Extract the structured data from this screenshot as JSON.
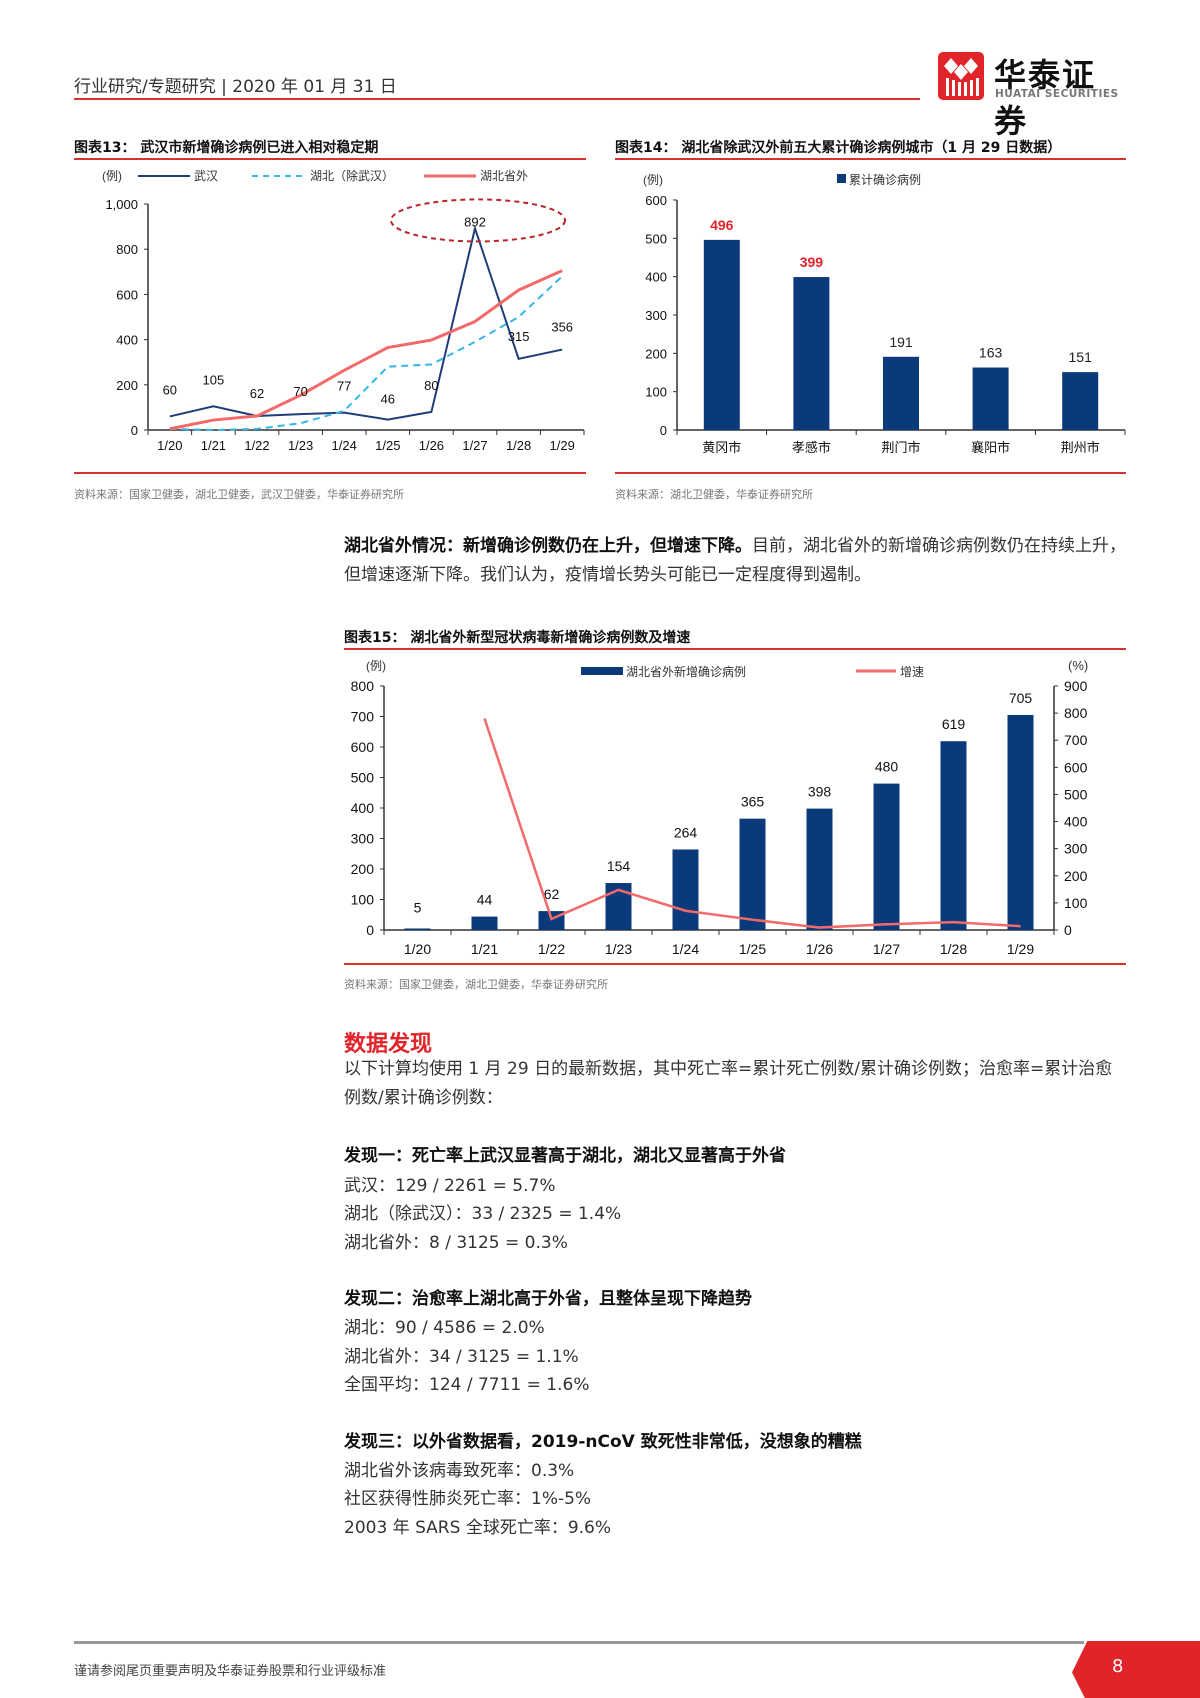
{
  "header": {
    "breadcrumb": "行业研究/专题研究 | 2020 年 01 月 31 日",
    "logo_cn": "华泰证券",
    "logo_en": "HUATAI SECURITIES"
  },
  "figure13": {
    "title": "图表13：  武汉市新增确诊病例已进入相对稳定期",
    "unit": "(例)",
    "source": "资料来源：国家卫健委，湖北卫健委，武汉卫健委，华泰证券研究所"
  },
  "figure14": {
    "title": "图表14：  湖北省除武汉外前五大累计确诊病例城市（1 月 29 日数据）",
    "unit": "(例)",
    "source": "资料来源：湖北卫健委，华泰证券研究所"
  },
  "figure15": {
    "title": "图表15：  湖北省外新型冠状病毒新增确诊病例数及增速",
    "unit_left": "(例)",
    "unit_right": "(%)",
    "source": "资料来源：国家卫健委，湖北卫健委，华泰证券研究所"
  },
  "body": {
    "para_bold": "湖北省外情况：新增确诊例数仍在上升，但增速下降。",
    "para_rest": "目前，湖北省外的新增确诊病例数仍在持续上升，但增速逐渐下降。我们认为，疫情增长势头可能已一定程度得到遏制。",
    "section_title": "数据发现",
    "intro": "以下计算均使用 1 月 29 日的最新数据，其中死亡率=累计死亡例数/累计确诊例数；治愈率=累计治愈例数/累计确诊例数：",
    "findings": [
      {
        "title": "发现一：死亡率上武汉显著高于湖北，湖北又显著高于外省",
        "items": [
          "武汉：129 / 2261 = 5.7%",
          "湖北（除武汉）：33 / 2325 = 1.4%",
          "湖北省外：8 / 3125 = 0.3%"
        ]
      },
      {
        "title": "发现二：治愈率上湖北高于外省，且整体呈现下降趋势",
        "items": [
          "湖北：90 / 4586 = 2.0%",
          "湖北省外：34 / 3125 = 1.1%",
          "全国平均：124 / 7711 = 1.6%"
        ]
      },
      {
        "title": "发现三：以外省数据看，2019-nCoV 致死性非常低，没想象的糟糕",
        "items": [
          "湖北省外该病毒致死率：0.3%",
          "社区获得性肺炎死亡率：1%-5%",
          "2003 年 SARS 全球死亡率：9.6%"
        ]
      }
    ]
  },
  "footer": {
    "disclaimer": "谨请参阅尾页重要声明及华泰证券股票和行业评级标准",
    "page_number": "8"
  },
  "colors": {
    "navy": "#0b3a7a",
    "red": "#f26a6a",
    "cyan": "#36b6e6",
    "brand_red": "#e1242a"
  },
  "chart_data": [
    {
      "type": "line",
      "title": "武汉市新增确诊病例已进入相对稳定期",
      "ylabel": "(例)",
      "ylim": [
        0,
        1000
      ],
      "yticks": [
        "0",
        "200",
        "400",
        "600",
        "800",
        "1,000"
      ],
      "categories": [
        "1/20",
        "1/21",
        "1/22",
        "1/23",
        "1/24",
        "1/25",
        "1/26",
        "1/27",
        "1/28",
        "1/29"
      ],
      "series": [
        {
          "name": "武汉",
          "style": "solid",
          "color": "#1f3d7a",
          "values": [
            60,
            105,
            62,
            70,
            77,
            46,
            80,
            892,
            315,
            356
          ]
        },
        {
          "name": "湖北（除武汉）",
          "style": "dashed",
          "color": "#36b6e6",
          "values": [
            5,
            0,
            5,
            30,
            85,
            280,
            290,
            390,
            500,
            680
          ]
        },
        {
          "name": "湖北省外",
          "style": "solid",
          "color": "#f26a6a",
          "values": [
            5,
            44,
            62,
            154,
            264,
            365,
            398,
            480,
            619,
            705
          ]
        }
      ],
      "annotation": "892 circled (dashed red ellipse)",
      "legend_position": "top"
    },
    {
      "type": "bar",
      "title": "湖北省除武汉外前五大累计确诊病例城市（1 月 29 日数据）",
      "ylabel": "(例)",
      "ylim": [
        0,
        600
      ],
      "yticks": [
        "0",
        "100",
        "200",
        "300",
        "400",
        "500",
        "600"
      ],
      "categories": [
        "黄冈市",
        "孝感市",
        "荆门市",
        "襄阳市",
        "荆州市"
      ],
      "series": [
        {
          "name": "累计确诊病例",
          "values": [
            496,
            399,
            191,
            163,
            151
          ]
        }
      ],
      "label_colors": [
        "#e1242a",
        "#e1242a",
        "#222",
        "#222",
        "#222"
      ],
      "legend_position": "top"
    },
    {
      "type": "bar",
      "title": "湖北省外新型冠状病毒新增确诊病例数及增速",
      "ylabel": "(例)",
      "y2label": "(%)",
      "ylim": [
        0,
        800
      ],
      "y2lim": [
        0,
        900
      ],
      "yticks": [
        "0",
        "100",
        "200",
        "300",
        "400",
        "500",
        "600",
        "700",
        "800"
      ],
      "y2ticks": [
        "0",
        "100",
        "200",
        "300",
        "400",
        "500",
        "600",
        "700",
        "800",
        "900"
      ],
      "categories": [
        "1/20",
        "1/21",
        "1/22",
        "1/23",
        "1/24",
        "1/25",
        "1/26",
        "1/27",
        "1/28",
        "1/29"
      ],
      "series": [
        {
          "name": "湖北省外新增确诊病例",
          "type": "bar",
          "values": [
            5,
            44,
            62,
            154,
            264,
            365,
            398,
            480,
            619,
            705
          ]
        },
        {
          "name": "增速",
          "type": "line",
          "axis": "right",
          "values": [
            null,
            780,
            41,
            148,
            71,
            38,
            9,
            21,
            29,
            14
          ]
        }
      ],
      "legend_position": "top"
    }
  ]
}
